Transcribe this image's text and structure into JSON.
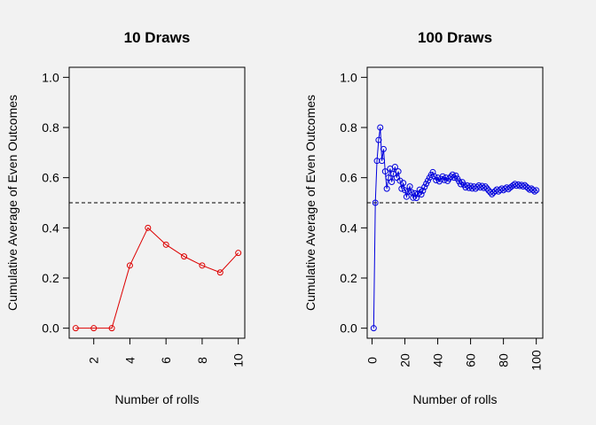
{
  "chart_data": [
    {
      "type": "line",
      "title": "10 Draws",
      "xlabel": "Number of rolls",
      "ylabel": "Cumulative Average of Even Outcomes",
      "color": "#dd0000",
      "marker": "open-circle",
      "xlim": [
        0.64,
        10.36
      ],
      "ylim": [
        -0.04,
        1.04
      ],
      "xticks": [
        2,
        4,
        6,
        8,
        10
      ],
      "yticks": [
        0.0,
        0.2,
        0.4,
        0.6,
        0.8,
        1.0
      ],
      "ytick_labels": [
        "0.0",
        "0.2",
        "0.4",
        "0.6",
        "0.8",
        "1.0"
      ],
      "reference_line": {
        "y": 0.5,
        "style": "dashed"
      },
      "x": [
        1,
        2,
        3,
        4,
        5,
        6,
        7,
        8,
        9,
        10
      ],
      "y": [
        0.0,
        0.0,
        0.0,
        0.25,
        0.4,
        0.333,
        0.286,
        0.25,
        0.222,
        0.3
      ]
    },
    {
      "type": "line",
      "title": "100 Draws",
      "xlabel": "Number of rolls",
      "ylabel": "Cumulative Average of Even Outcomes",
      "color": "#0000dd",
      "marker": "open-circle",
      "xlim": [
        -2.96,
        103.96
      ],
      "ylim": [
        -0.04,
        1.04
      ],
      "xticks": [
        0,
        20,
        40,
        60,
        80,
        100
      ],
      "yticks": [
        0.0,
        0.2,
        0.4,
        0.6,
        0.8,
        1.0
      ],
      "ytick_labels": [
        "0.0",
        "0.2",
        "0.4",
        "0.6",
        "0.8",
        "1.0"
      ],
      "reference_line": {
        "y": 0.5,
        "style": "dashed"
      },
      "x": [
        1,
        2,
        3,
        4,
        5,
        6,
        7,
        8,
        9,
        10,
        11,
        12,
        13,
        14,
        15,
        16,
        17,
        18,
        19,
        20,
        21,
        22,
        23,
        24,
        25,
        26,
        27,
        28,
        29,
        30,
        31,
        32,
        33,
        34,
        35,
        36,
        37,
        38,
        39,
        40,
        41,
        42,
        43,
        44,
        45,
        46,
        47,
        48,
        49,
        50,
        51,
        52,
        53,
        54,
        55,
        56,
        57,
        58,
        59,
        60,
        61,
        62,
        63,
        64,
        65,
        66,
        67,
        68,
        69,
        70,
        71,
        72,
        73,
        74,
        75,
        76,
        77,
        78,
        79,
        80,
        81,
        82,
        83,
        84,
        85,
        86,
        87,
        88,
        89,
        90,
        91,
        92,
        93,
        94,
        95,
        96,
        97,
        98,
        99,
        100
      ],
      "y": [
        0.0,
        0.5,
        0.667,
        0.75,
        0.8,
        0.667,
        0.714,
        0.625,
        0.556,
        0.6,
        0.636,
        0.583,
        0.615,
        0.643,
        0.6,
        0.625,
        0.588,
        0.556,
        0.579,
        0.55,
        0.524,
        0.545,
        0.565,
        0.542,
        0.52,
        0.538,
        0.519,
        0.536,
        0.552,
        0.533,
        0.548,
        0.563,
        0.576,
        0.588,
        0.6,
        0.611,
        0.622,
        0.605,
        0.59,
        0.6,
        0.585,
        0.595,
        0.605,
        0.591,
        0.6,
        0.587,
        0.596,
        0.604,
        0.612,
        0.6,
        0.608,
        0.596,
        0.585,
        0.574,
        0.582,
        0.571,
        0.561,
        0.569,
        0.559,
        0.567,
        0.557,
        0.565,
        0.556,
        0.563,
        0.569,
        0.561,
        0.567,
        0.559,
        0.565,
        0.557,
        0.549,
        0.542,
        0.534,
        0.541,
        0.547,
        0.553,
        0.545,
        0.551,
        0.557,
        0.55,
        0.556,
        0.561,
        0.554,
        0.56,
        0.565,
        0.57,
        0.575,
        0.568,
        0.573,
        0.567,
        0.571,
        0.565,
        0.57,
        0.564,
        0.558,
        0.552,
        0.557,
        0.551,
        0.545,
        0.55
      ]
    }
  ]
}
